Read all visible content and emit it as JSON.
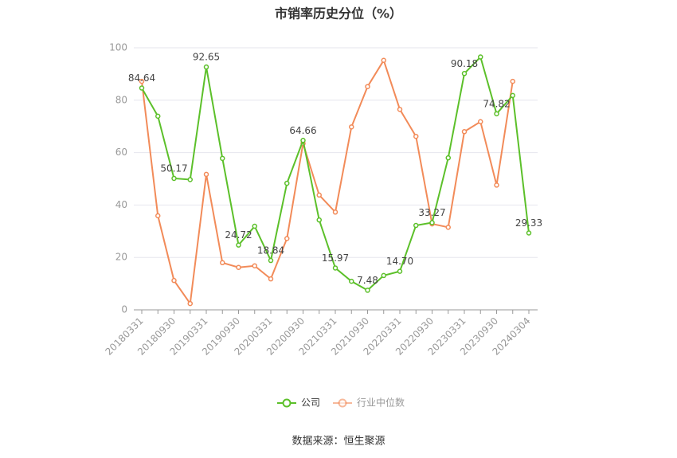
{
  "chart_data": {
    "type": "line",
    "title": "市销率历史分位（%）",
    "source": "数据来源：恒生聚源",
    "categories": [
      "20180331",
      null,
      "20180930",
      null,
      "20190331",
      null,
      "20190930",
      null,
      "20200331",
      null,
      "20200930",
      null,
      "20210331",
      null,
      "20210930",
      null,
      "20220331",
      null,
      "20220930",
      null,
      "20230331",
      null,
      "20230930",
      null,
      "20240304"
    ],
    "series": [
      {
        "name": "公司",
        "color": "#5cc02a",
        "values": [
          84.64,
          73.9,
          50.17,
          49.7,
          92.65,
          57.8,
          24.72,
          31.9,
          18.84,
          48.3,
          64.66,
          34.3,
          15.97,
          10.9,
          7.48,
          13.1,
          14.7,
          32.2,
          33.27,
          58.0,
          90.18,
          96.5,
          74.82,
          81.8,
          29.33
        ],
        "value_labels": [
          "84.64",
          null,
          "50.17",
          null,
          "92.65",
          null,
          "24.72",
          null,
          "18.84",
          null,
          "64.66",
          null,
          "15.97",
          null,
          "7.48",
          null,
          "14.70",
          null,
          "33.27",
          null,
          "90.18",
          null,
          "74.82",
          null,
          "29.33"
        ]
      },
      {
        "name": "行业中位数",
        "color": "#f28b59",
        "values": [
          87.2,
          35.9,
          11.2,
          2.4,
          51.7,
          18.0,
          16.2,
          16.8,
          11.8,
          27.2,
          63.5,
          43.8,
          37.3,
          69.8,
          85.2,
          95.2,
          76.5,
          66.2,
          32.8,
          31.5,
          68.0,
          71.8,
          47.6,
          87.2,
          null
        ]
      }
    ],
    "ylim": [
      0,
      100
    ],
    "yticks": [
      0,
      20,
      40,
      60,
      80,
      100
    ],
    "grid": true,
    "legend": "bottom"
  }
}
